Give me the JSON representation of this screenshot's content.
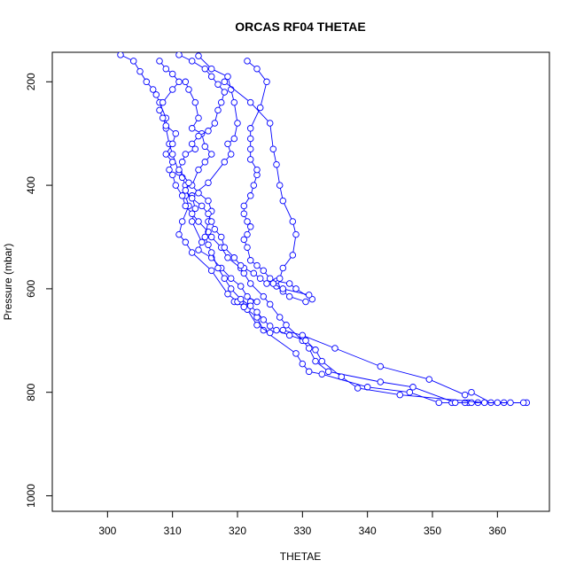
{
  "chart_data": {
    "type": "scatter",
    "title": "ORCAS RF04 THETAE",
    "xlabel": "THETAE",
    "ylabel": "Pressure (mbar)",
    "xlim": [
      291.5,
      368
    ],
    "ylim": [
      1030,
      143
    ],
    "y_axis_reversed": true,
    "x_ticks": [
      300,
      310,
      320,
      330,
      340,
      350,
      360
    ],
    "y_ticks": [
      200,
      400,
      600,
      800,
      1000
    ],
    "grid": false,
    "legend": "none",
    "series_color": "#0000ff",
    "marker": "open-circle",
    "series": [
      {
        "points": [
          [
            364.5,
            820
          ],
          [
            361,
            820
          ],
          [
            357,
            820
          ],
          [
            355.5,
            820
          ],
          [
            355,
            820
          ],
          [
            353,
            820
          ],
          [
            351,
            820
          ],
          [
            346.5,
            800
          ],
          [
            340,
            790
          ],
          [
            333,
            765
          ],
          [
            331,
            760
          ],
          [
            330,
            745
          ],
          [
            329,
            725
          ],
          [
            324,
            680
          ],
          [
            323,
            655
          ],
          [
            321,
            635
          ],
          [
            320,
            625
          ],
          [
            320.5,
            625
          ],
          [
            320,
            625
          ],
          [
            319.5,
            625
          ],
          [
            320,
            625
          ],
          [
            318.5,
            610
          ],
          [
            316,
            565
          ],
          [
            313,
            530
          ],
          [
            312,
            510
          ],
          [
            311,
            495
          ],
          [
            311.5,
            470
          ],
          [
            312.5,
            440
          ],
          [
            312,
            420
          ],
          [
            312,
            400
          ],
          [
            311.5,
            385
          ],
          [
            311,
            375
          ],
          [
            310,
            340
          ],
          [
            309.5,
            320
          ],
          [
            309,
            290
          ],
          [
            309,
            270
          ],
          [
            308,
            240
          ],
          [
            307.5,
            225
          ],
          [
            307,
            215
          ],
          [
            306,
            200
          ],
          [
            305,
            180
          ],
          [
            304,
            160
          ],
          [
            302,
            148
          ]
        ]
      },
      {
        "points": [
          [
            364,
            820
          ],
          [
            359,
            820
          ],
          [
            356,
            800
          ],
          [
            355,
            805
          ],
          [
            349.5,
            775
          ],
          [
            342,
            750
          ],
          [
            335,
            715
          ],
          [
            330,
            690
          ],
          [
            327,
            680
          ],
          [
            325,
            685
          ],
          [
            323,
            670
          ],
          [
            321.5,
            640
          ],
          [
            321,
            635
          ],
          [
            322,
            625
          ],
          [
            323,
            625
          ],
          [
            321.5,
            615
          ],
          [
            320.5,
            595
          ],
          [
            319,
            580
          ],
          [
            317.5,
            560
          ],
          [
            316,
            540
          ],
          [
            314,
            525
          ],
          [
            314.5,
            510
          ],
          [
            313,
            470
          ],
          [
            313.5,
            445
          ],
          [
            313,
            420
          ],
          [
            315.5,
            395
          ],
          [
            318,
            355
          ],
          [
            319,
            340
          ],
          [
            318.5,
            320
          ],
          [
            319.5,
            310
          ],
          [
            320,
            280
          ],
          [
            319.5,
            240
          ],
          [
            319,
            215
          ],
          [
            318.5,
            190
          ],
          [
            316,
            175
          ],
          [
            314,
            150
          ]
        ]
      },
      {
        "points": [
          [
            362,
            820
          ],
          [
            356,
            820
          ],
          [
            353.5,
            820
          ],
          [
            347,
            790
          ],
          [
            342,
            780
          ],
          [
            334,
            760
          ],
          [
            332,
            740
          ],
          [
            331,
            715
          ],
          [
            330,
            700
          ],
          [
            327.5,
            670
          ],
          [
            326.5,
            655
          ],
          [
            325,
            630
          ],
          [
            324,
            615
          ],
          [
            322,
            590
          ],
          [
            321,
            570
          ],
          [
            320.5,
            560
          ],
          [
            318.5,
            540
          ],
          [
            317.5,
            520
          ],
          [
            316,
            500
          ],
          [
            315.5,
            490
          ],
          [
            314,
            470
          ],
          [
            313,
            455
          ],
          [
            312,
            440
          ],
          [
            311.5,
            420
          ],
          [
            310.5,
            400
          ],
          [
            310,
            380
          ],
          [
            309.5,
            370
          ],
          [
            310,
            355
          ],
          [
            309,
            340
          ],
          [
            310,
            320
          ],
          [
            310.5,
            300
          ],
          [
            309,
            285
          ],
          [
            308.5,
            270
          ],
          [
            308,
            255
          ],
          [
            308.5,
            240
          ],
          [
            310,
            215
          ],
          [
            311,
            200
          ],
          [
            310,
            185
          ],
          [
            309,
            175
          ],
          [
            308,
            160
          ]
        ]
      },
      {
        "points": [
          [
            360,
            820
          ],
          [
            358,
            820
          ],
          [
            345,
            805
          ],
          [
            338.5,
            792
          ],
          [
            336,
            770
          ],
          [
            333,
            740
          ],
          [
            332,
            718
          ],
          [
            330.5,
            700
          ],
          [
            328,
            690
          ],
          [
            326,
            680
          ],
          [
            325,
            672
          ],
          [
            324,
            660
          ],
          [
            323,
            645
          ],
          [
            322,
            633
          ],
          [
            320.5,
            620
          ],
          [
            319,
            600
          ],
          [
            318,
            580
          ],
          [
            317,
            560
          ],
          [
            316,
            530
          ],
          [
            315.5,
            515
          ],
          [
            315,
            500
          ],
          [
            315.5,
            470
          ],
          [
            316,
            450
          ],
          [
            315.5,
            430
          ],
          [
            314,
            415
          ],
          [
            313,
            400
          ],
          [
            314,
            370
          ],
          [
            315,
            355
          ],
          [
            316,
            340
          ],
          [
            315,
            325
          ],
          [
            314.5,
            300
          ],
          [
            313,
            290
          ],
          [
            314,
            270
          ],
          [
            313.5,
            240
          ],
          [
            312.5,
            215
          ],
          [
            312,
            200
          ]
        ]
      },
      {
        "points": [
          [
            331.5,
            620
          ],
          [
            329,
            600
          ],
          [
            328,
            590
          ],
          [
            326,
            585
          ],
          [
            325,
            580
          ],
          [
            324,
            565
          ],
          [
            323,
            555
          ],
          [
            322,
            545
          ],
          [
            321.5,
            520
          ],
          [
            321,
            505
          ],
          [
            321.5,
            495
          ],
          [
            322,
            480
          ],
          [
            321.5,
            470
          ],
          [
            321,
            455
          ],
          [
            321,
            440
          ],
          [
            322,
            420
          ],
          [
            322.5,
            400
          ],
          [
            323,
            380
          ],
          [
            323,
            370
          ],
          [
            322,
            350
          ],
          [
            322,
            330
          ],
          [
            322,
            310
          ],
          [
            322,
            290
          ],
          [
            323.5,
            250
          ],
          [
            324.5,
            200
          ],
          [
            323,
            175
          ],
          [
            321.5,
            160
          ]
        ]
      },
      {
        "points": [
          [
            330.5,
            625
          ],
          [
            328,
            615
          ],
          [
            327,
            605
          ],
          [
            326,
            595
          ],
          [
            324.5,
            590
          ],
          [
            323.5,
            580
          ],
          [
            322.5,
            570
          ],
          [
            321,
            560
          ],
          [
            320.5,
            555
          ],
          [
            319.5,
            540
          ],
          [
            318,
            520
          ],
          [
            317.5,
            500
          ],
          [
            316.5,
            485
          ],
          [
            316,
            470
          ],
          [
            315.5,
            455
          ],
          [
            314.5,
            440
          ],
          [
            313,
            425
          ],
          [
            312,
            410
          ],
          [
            312.5,
            395
          ],
          [
            311,
            370
          ],
          [
            311.5,
            355
          ],
          [
            312,
            340
          ],
          [
            313.5,
            330
          ],
          [
            313,
            320
          ],
          [
            314,
            305
          ],
          [
            315.5,
            295
          ],
          [
            316.5,
            280
          ],
          [
            317,
            255
          ],
          [
            317.5,
            240
          ],
          [
            318,
            220
          ],
          [
            317,
            205
          ],
          [
            316,
            190
          ],
          [
            315,
            175
          ],
          [
            313,
            160
          ],
          [
            311,
            148
          ]
        ]
      },
      {
        "points": [
          [
            331,
            612
          ],
          [
            327,
            600
          ],
          [
            325.5,
            590
          ],
          [
            326.5,
            580
          ],
          [
            327,
            560
          ],
          [
            328.5,
            535
          ],
          [
            329,
            495
          ],
          [
            328.5,
            470
          ],
          [
            327,
            430
          ],
          [
            326.5,
            400
          ],
          [
            326,
            360
          ],
          [
            325.5,
            330
          ],
          [
            325,
            280
          ],
          [
            322,
            240
          ],
          [
            318,
            200
          ]
        ]
      }
    ]
  }
}
